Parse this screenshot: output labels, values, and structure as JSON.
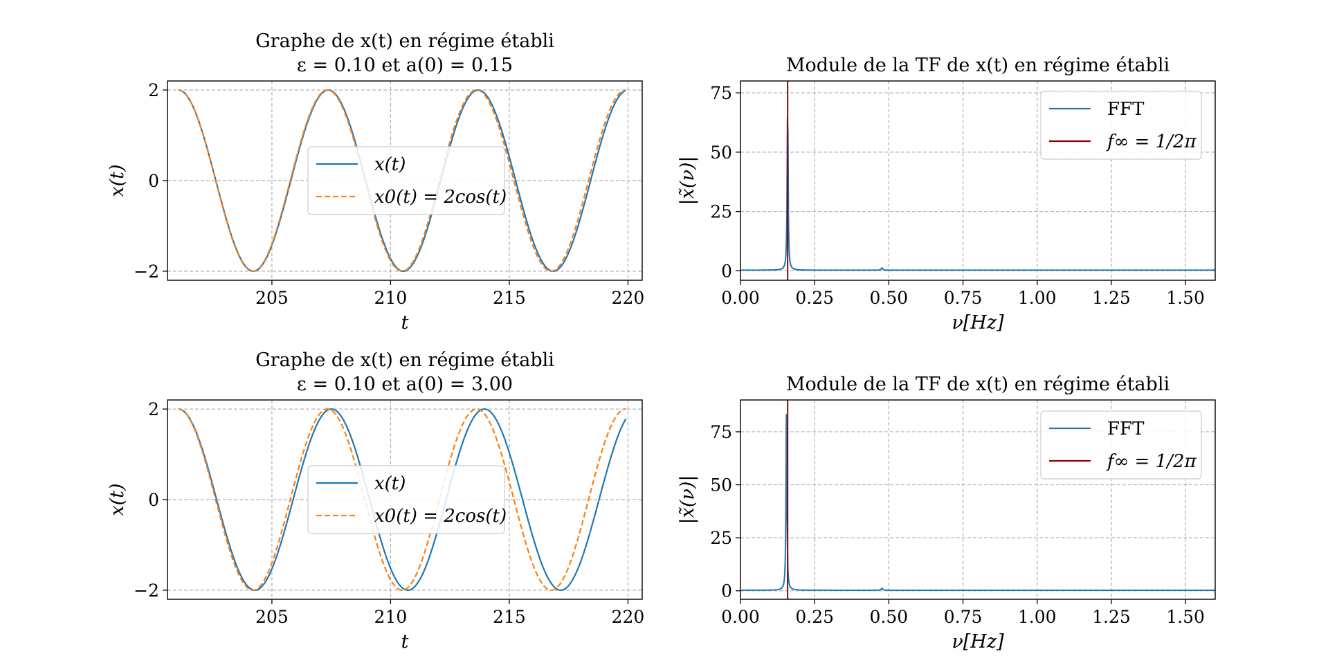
{
  "colors": {
    "x_t": "#1f77b4",
    "x0_t": "#ff7f0e",
    "fft": "#1f77b4",
    "f_inf": "#8b0000",
    "grid": "#b0b0b0"
  },
  "chart_data": [
    {
      "id": "time-top",
      "type": "line",
      "title_line1": "Graphe de x(t) en régime établi",
      "title_line2": "ε = 0.10 et a(0) = 0.15",
      "xlabel": "t",
      "ylabel": "x(t)",
      "xlim": [
        200.6,
        220.6
      ],
      "ylim": [
        -2.2,
        2.2
      ],
      "xticks": [
        205,
        210,
        215,
        220
      ],
      "yticks": [
        -2,
        0,
        2
      ],
      "xtick_labels": [
        "205",
        "210",
        "215",
        "220"
      ],
      "ytick_labels": [
        "−2",
        "0",
        "2"
      ],
      "grid": true,
      "legend_position": "center",
      "series": [
        {
          "name": "x(t)",
          "style": "solid",
          "amplitude": 2.0,
          "omega": 0.995,
          "t_start": 201.06,
          "t_end": 219.91
        },
        {
          "name": "x0(t) = 2cos(t)",
          "style": "dashed",
          "amplitude": 2.0,
          "omega": 1.0,
          "t_start": 201.06,
          "t_end": 219.91
        }
      ],
      "legend": {
        "x_t": "x(t)",
        "x0_t": "x0(t) = 2cos(t)"
      }
    },
    {
      "id": "fft-top",
      "type": "line",
      "title": "Module de la TF de x(t) en régime établi",
      "xlabel": "ν[Hz]",
      "ylabel": "|x̃(ν)|",
      "xlim": [
        0,
        1.6
      ],
      "ylim": [
        -4,
        80
      ],
      "xticks": [
        0,
        0.25,
        0.5,
        0.75,
        1.0,
        1.25,
        1.5
      ],
      "yticks": [
        0,
        25,
        50,
        75
      ],
      "xtick_labels": [
        "0.00",
        "0.25",
        "0.50",
        "0.75",
        "1.00",
        "1.25",
        "1.50"
      ],
      "ytick_labels": [
        "0",
        "25",
        "50",
        "75"
      ],
      "grid": true,
      "legend_position": "top-right",
      "peak": {
        "frequency": 0.159,
        "magnitude": 76
      },
      "harmonic": {
        "frequency": 0.477,
        "magnitude": 1.0
      },
      "vline": {
        "frequency": 0.159
      },
      "legend": {
        "fft": "FFT",
        "f_inf": "f∞ = 1/2π"
      }
    },
    {
      "id": "time-bottom",
      "type": "line",
      "title_line1": "Graphe de x(t) en régime établi",
      "title_line2": "ε = 0.10 et a(0) = 3.00",
      "xlabel": "t",
      "ylabel": "x(t)",
      "xlim": [
        200.6,
        220.6
      ],
      "ylim": [
        -2.2,
        2.2
      ],
      "xticks": [
        205,
        210,
        215,
        220
      ],
      "yticks": [
        -2,
        0,
        2
      ],
      "xtick_labels": [
        "205",
        "210",
        "215",
        "220"
      ],
      "ytick_labels": [
        "−2",
        "0",
        "2"
      ],
      "grid": true,
      "legend_position": "center",
      "series": [
        {
          "name": "x(t)",
          "style": "solid",
          "amplitude": 2.0,
          "omega": 0.975,
          "t_start": 201.06,
          "t_end": 219.91
        },
        {
          "name": "x0(t) = 2cos(t)",
          "style": "dashed",
          "amplitude": 2.0,
          "omega": 1.0,
          "t_start": 201.06,
          "t_end": 219.91
        }
      ],
      "legend": {
        "x_t": "x(t)",
        "x0_t": "x0(t) = 2cos(t)"
      }
    },
    {
      "id": "fft-bottom",
      "type": "line",
      "title": "Module de la TF de x(t) en régime établi",
      "xlabel": "ν[Hz]",
      "ylabel": "|x̃(ν)|",
      "xlim": [
        0,
        1.6
      ],
      "ylim": [
        -4,
        90
      ],
      "xticks": [
        0,
        0.25,
        0.5,
        0.75,
        1.0,
        1.25,
        1.5
      ],
      "yticks": [
        0,
        25,
        50,
        75
      ],
      "xtick_labels": [
        "0.00",
        "0.25",
        "0.50",
        "0.75",
        "1.00",
        "1.25",
        "1.50"
      ],
      "ytick_labels": [
        "0",
        "25",
        "50",
        "75"
      ],
      "grid": true,
      "legend_position": "top-right",
      "peak": {
        "frequency": 0.155,
        "magnitude": 86
      },
      "harmonic": {
        "frequency": 0.477,
        "magnitude": 1.0
      },
      "vline": {
        "frequency": 0.159
      },
      "legend": {
        "fft": "FFT",
        "f_inf": "f∞ = 1/2π"
      }
    }
  ]
}
